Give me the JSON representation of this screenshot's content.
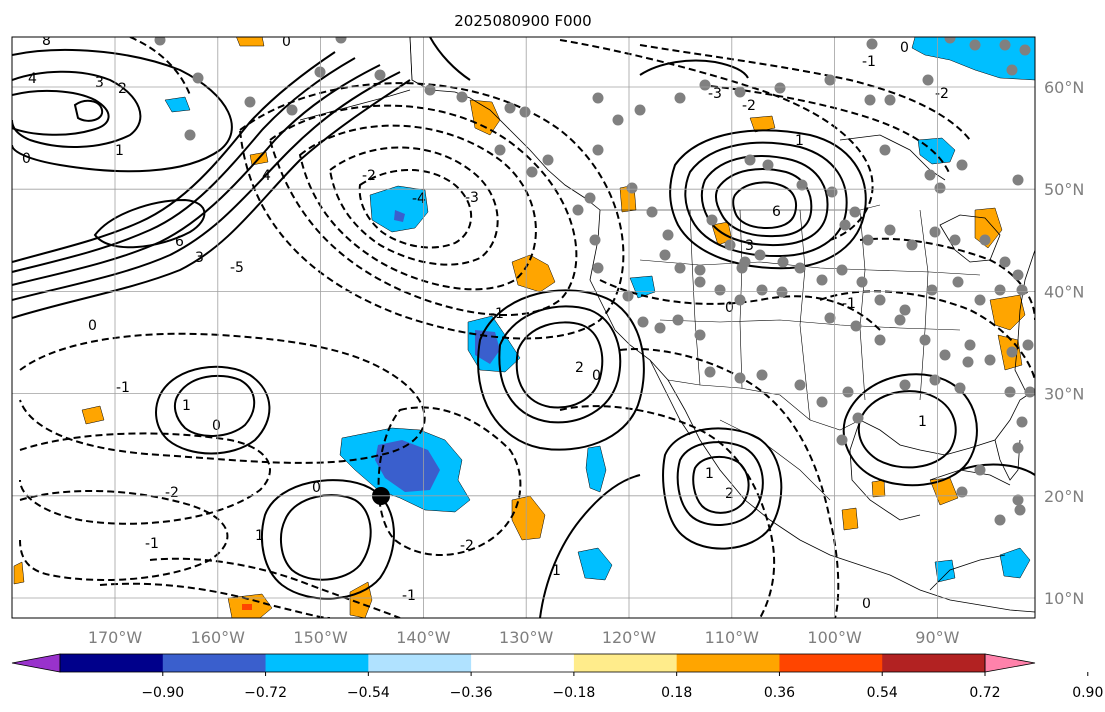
{
  "title": "2025080900 F000",
  "lat_labels": [
    {
      "value": 60,
      "label": "60°N"
    },
    {
      "value": 50,
      "label": "50°N"
    },
    {
      "value": 40,
      "label": "40°N"
    },
    {
      "value": 30,
      "label": "30°N"
    },
    {
      "value": 20,
      "label": "20°N"
    },
    {
      "value": 10,
      "label": "10°N"
    }
  ],
  "lon_labels": [
    {
      "value": -170,
      "label": "170°W"
    },
    {
      "value": -160,
      "label": "160°W"
    },
    {
      "value": -150,
      "label": "150°W"
    },
    {
      "value": -140,
      "label": "140°W"
    },
    {
      "value": -130,
      "label": "130°W"
    },
    {
      "value": -120,
      "label": "120°W"
    },
    {
      "value": -110,
      "label": "110°W"
    },
    {
      "value": -100,
      "label": "100°W"
    },
    {
      "value": -90,
      "label": "90°W"
    }
  ],
  "colorbar": {
    "ticks": [
      "−0.90",
      "−0.72",
      "−0.54",
      "−0.36",
      "−0.18",
      "0.18",
      "0.36",
      "0.54",
      "0.72",
      "0.90"
    ],
    "colors": [
      "#9932cc",
      "#00008b",
      "#3a5fcd",
      "#00bfff",
      "#b0e2ff",
      "#ffffff",
      "#ffec8b",
      "#ffa500",
      "#ff4500",
      "#b22222",
      "#ff82ab"
    ]
  },
  "contour_labels": {
    "north_pacific_high": "6",
    "high_ring": "4",
    "high_mid": "3",
    "west_top_2": "2",
    "west_top_3": "3",
    "west_top_4": "4",
    "west_top_1": "1",
    "west_top_0": "0",
    "west_top_8": "8",
    "top_0": "0",
    "gulf_neg_2": "-2",
    "gulf_neg_3": "-3",
    "gulf_neg_4": "-4",
    "gulf_neg_5": "-5",
    "mid_neg_1": "-1",
    "low_0": "0",
    "subtrop_1": "1",
    "subtrop_0": "0",
    "subtrop_neg_2": "-2",
    "subtrop_neg_1": "-1",
    "south_pos_1": "1",
    "south_0": "0",
    "coast_pos_2": "2",
    "coast_0": "0",
    "coast_neg_1": "-1",
    "coast_neg_2": "-2",
    "plains_6": "6",
    "plains_3": "3",
    "plains_1": "1",
    "plains_0": "0",
    "canada_neg_2": "-2",
    "canada_neg_3": "-3",
    "canada_neg_1": "-1",
    "east_neg_2": "-2",
    "east_neg_1": "-1",
    "east_0": "0",
    "se_pos_1": "1",
    "mex_pos_1": "1",
    "mex_pos_2": "2",
    "bottom_neg_1": "-1",
    "bottom_0": "0",
    "bottom_1": "1"
  },
  "stations": {
    "color": "#808080",
    "count": 120
  },
  "markers": {
    "black_dot": {
      "lat": 20,
      "lon": -143
    }
  },
  "colors": {
    "grid": "#a0a0a0",
    "tick_labels": "#7f7f7f",
    "blue": "#00bfff",
    "dark_blue": "#3a5fcd",
    "orange": "#ffa500",
    "red": "#ff4500",
    "light_blue": "#b0e2ff"
  }
}
